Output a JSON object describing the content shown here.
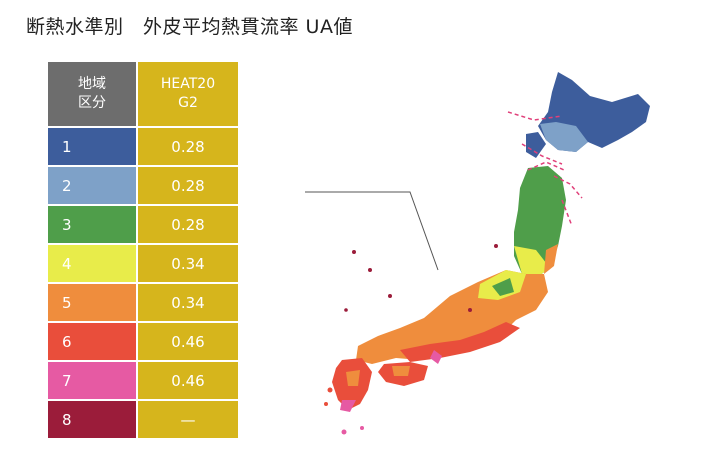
{
  "title": "断熱水準別　外皮平均熱貫流率 UA値",
  "table": {
    "header_region_line1": "地域",
    "header_region_line2": "区分",
    "header_g2_line1": "HEAT20",
    "header_g2_line2": "G2",
    "rows": [
      {
        "region": "1",
        "value": "0.28",
        "color": "#3d5d9c"
      },
      {
        "region": "2",
        "value": "0.28",
        "color": "#7ea1c8"
      },
      {
        "region": "3",
        "value": "0.28",
        "color": "#4f9e4a"
      },
      {
        "region": "4",
        "value": "0.34",
        "color": "#e8ec4a"
      },
      {
        "region": "5",
        "value": "0.34",
        "color": "#ef8d3d"
      },
      {
        "region": "6",
        "value": "0.46",
        "color": "#e94e3b"
      },
      {
        "region": "7",
        "value": "0.46",
        "color": "#e65aa3"
      },
      {
        "region": "8",
        "value": "—",
        "color": "#9b1c3a"
      }
    ]
  },
  "colors": {
    "header_region": "#6d6d6d",
    "header_g2": "#d6b51c",
    "value_cell": "#d6b51c",
    "boundary_line": "#e0407a"
  }
}
